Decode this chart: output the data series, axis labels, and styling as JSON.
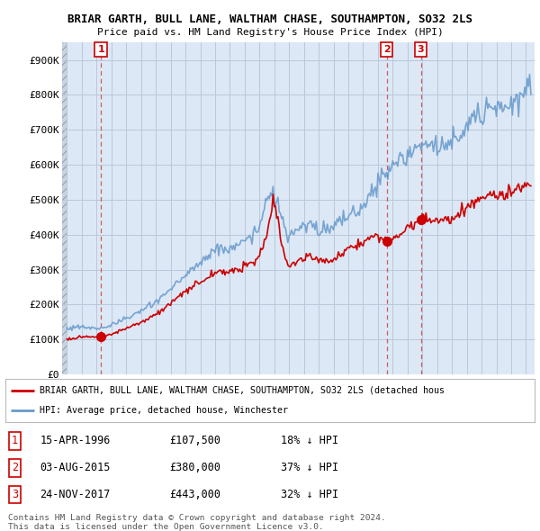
{
  "title1": "BRIAR GARTH, BULL LANE, WALTHAM CHASE, SOUTHAMPTON, SO32 2LS",
  "title2": "Price paid vs. HM Land Registry's House Price Index (HPI)",
  "background_color": "#ffffff",
  "plot_bg_color": "#dce8f5",
  "hatch_bg_color": "#c8d4e2",
  "grid_color": "#b8c8da",
  "red_color": "#cc0000",
  "blue_color": "#6699cc",
  "dashed_color": "#cc4444",
  "legend_red": "BRIAR GARTH, BULL LANE, WALTHAM CHASE, SOUTHAMPTON, SO32 2LS (detached hous",
  "legend_blue": "HPI: Average price, detached house, Winchester",
  "table_rows": [
    [
      "1",
      "15-APR-1996",
      "£107,500",
      "18% ↓ HPI"
    ],
    [
      "2",
      "03-AUG-2015",
      "£380,000",
      "37% ↓ HPI"
    ],
    [
      "3",
      "24-NOV-2017",
      "£443,000",
      "32% ↓ HPI"
    ]
  ],
  "footer": "Contains HM Land Registry data © Crown copyright and database right 2024.\nThis data is licensed under the Open Government Licence v3.0.",
  "ylim": [
    0,
    950000
  ],
  "ytick_labels": [
    "£0",
    "£100K",
    "£200K",
    "£300K",
    "£400K",
    "£500K",
    "£600K",
    "£700K",
    "£800K",
    "£900K"
  ],
  "hpi_anchors": {
    "1994.0": 130000,
    "1995.0": 138000,
    "1996.0": 130000,
    "1997.0": 140000,
    "1998.0": 158000,
    "1999.0": 178000,
    "2000.0": 205000,
    "2001.0": 240000,
    "2002.0": 280000,
    "2003.0": 318000,
    "2004.0": 355000,
    "2005.0": 358000,
    "2006.0": 378000,
    "2007.0": 410000,
    "2007.5": 500000,
    "2008.0": 510000,
    "2008.5": 460000,
    "2009.0": 390000,
    "2009.5": 410000,
    "2010.0": 415000,
    "2010.5": 430000,
    "2011.0": 415000,
    "2011.5": 420000,
    "2012.0": 415000,
    "2012.5": 435000,
    "2013.0": 450000,
    "2013.5": 465000,
    "2014.0": 480000,
    "2014.5": 510000,
    "2015.0": 545000,
    "2015.5": 570000,
    "2016.0": 590000,
    "2016.5": 610000,
    "2017.0": 620000,
    "2017.5": 640000,
    "2018.0": 660000,
    "2018.5": 660000,
    "2019.0": 650000,
    "2019.5": 655000,
    "2020.0": 650000,
    "2020.5": 680000,
    "2021.0": 700000,
    "2021.5": 730000,
    "2022.0": 760000,
    "2022.5": 770000,
    "2023.0": 760000,
    "2023.5": 765000,
    "2024.0": 775000,
    "2024.5": 790000,
    "2025.5": 820000
  },
  "red_anchors": {
    "1994.0": 101000,
    "1994.5": 103000,
    "1995.0": 107000,
    "1995.5": 108000,
    "1996.33": 107500,
    "1997.0": 113000,
    "1998.0": 130000,
    "1999.0": 148000,
    "2000.0": 170000,
    "2001.0": 200000,
    "2002.0": 235000,
    "2003.0": 262000,
    "2004.0": 290000,
    "2005.0": 295000,
    "2006.0": 305000,
    "2007.0": 330000,
    "2007.5": 390000,
    "2008.0": 480000,
    "2008.3": 460000,
    "2008.5": 390000,
    "2009.0": 305000,
    "2009.5": 320000,
    "2010.0": 330000,
    "2010.5": 340000,
    "2011.0": 325000,
    "2011.5": 330000,
    "2012.0": 325000,
    "2012.5": 340000,
    "2013.0": 355000,
    "2013.5": 370000,
    "2014.0": 380000,
    "2014.5": 390000,
    "2015.0": 400000,
    "2015.58": 380000,
    "2016.0": 390000,
    "2016.5": 405000,
    "2017.0": 415000,
    "2017.9": 443000,
    "2018.0": 450000,
    "2018.5": 445000,
    "2019.0": 440000,
    "2019.5": 445000,
    "2020.0": 445000,
    "2020.5": 460000,
    "2021.0": 470000,
    "2021.5": 490000,
    "2022.0": 500000,
    "2022.5": 510000,
    "2023.0": 505000,
    "2023.5": 510000,
    "2024.0": 520000,
    "2024.5": 530000,
    "2025.5": 545000
  }
}
